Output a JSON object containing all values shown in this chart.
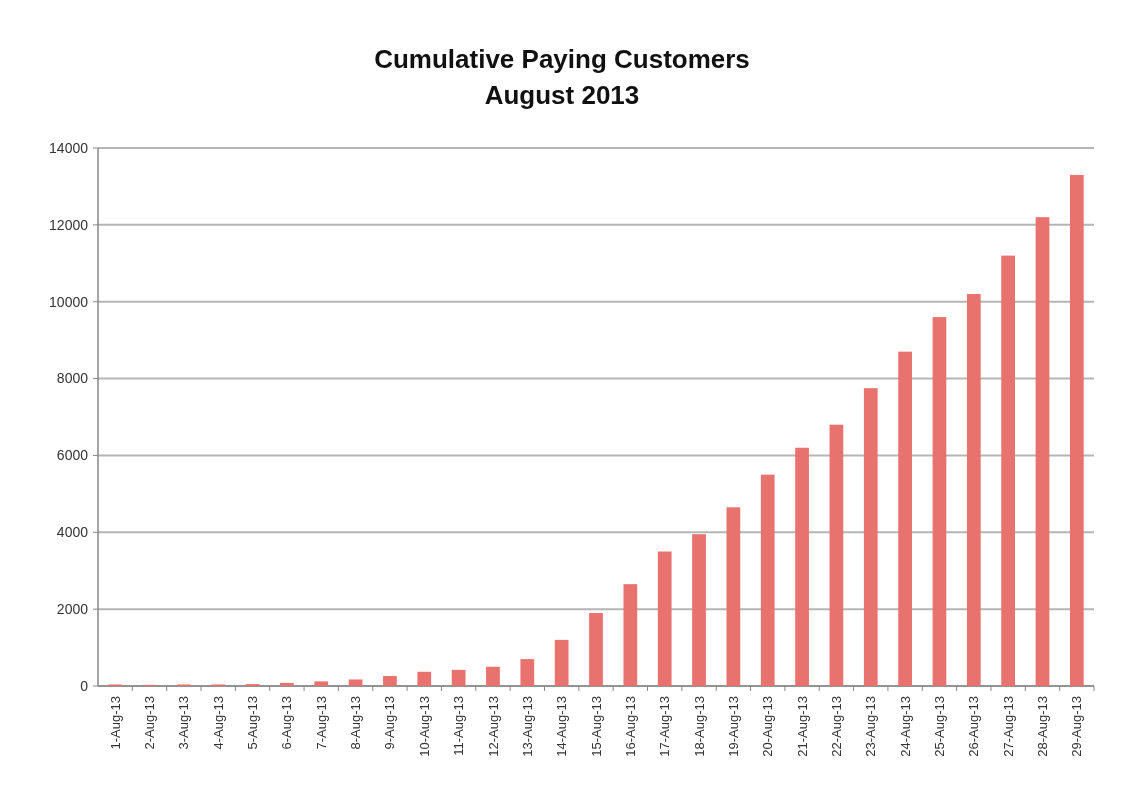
{
  "chart_data": {
    "type": "bar",
    "title": "Cumulative Paying Customers\nAugust 2013",
    "categories": [
      "1-Aug-13",
      "2-Aug-13",
      "3-Aug-13",
      "4-Aug-13",
      "5-Aug-13",
      "6-Aug-13",
      "7-Aug-13",
      "8-Aug-13",
      "9-Aug-13",
      "10-Aug-13",
      "11-Aug-13",
      "12-Aug-13",
      "13-Aug-13",
      "14-Aug-13",
      "15-Aug-13",
      "16-Aug-13",
      "17-Aug-13",
      "18-Aug-13",
      "19-Aug-13",
      "20-Aug-13",
      "21-Aug-13",
      "22-Aug-13",
      "23-Aug-13",
      "24-Aug-13",
      "25-Aug-13",
      "26-Aug-13",
      "27-Aug-13",
      "28-Aug-13",
      "29-Aug-13"
    ],
    "values": [
      40,
      30,
      40,
      40,
      50,
      80,
      120,
      170,
      260,
      370,
      420,
      500,
      700,
      1200,
      1900,
      2650,
      3500,
      3950,
      4650,
      5500,
      6200,
      6800,
      7750,
      8700,
      9600,
      10200,
      11200,
      12200,
      13300
    ],
    "color": "#e8726e",
    "ylim": [
      0,
      14000
    ],
    "yticks": [
      0,
      2000,
      4000,
      6000,
      8000,
      10000,
      12000,
      14000
    ],
    "grid": "y"
  }
}
